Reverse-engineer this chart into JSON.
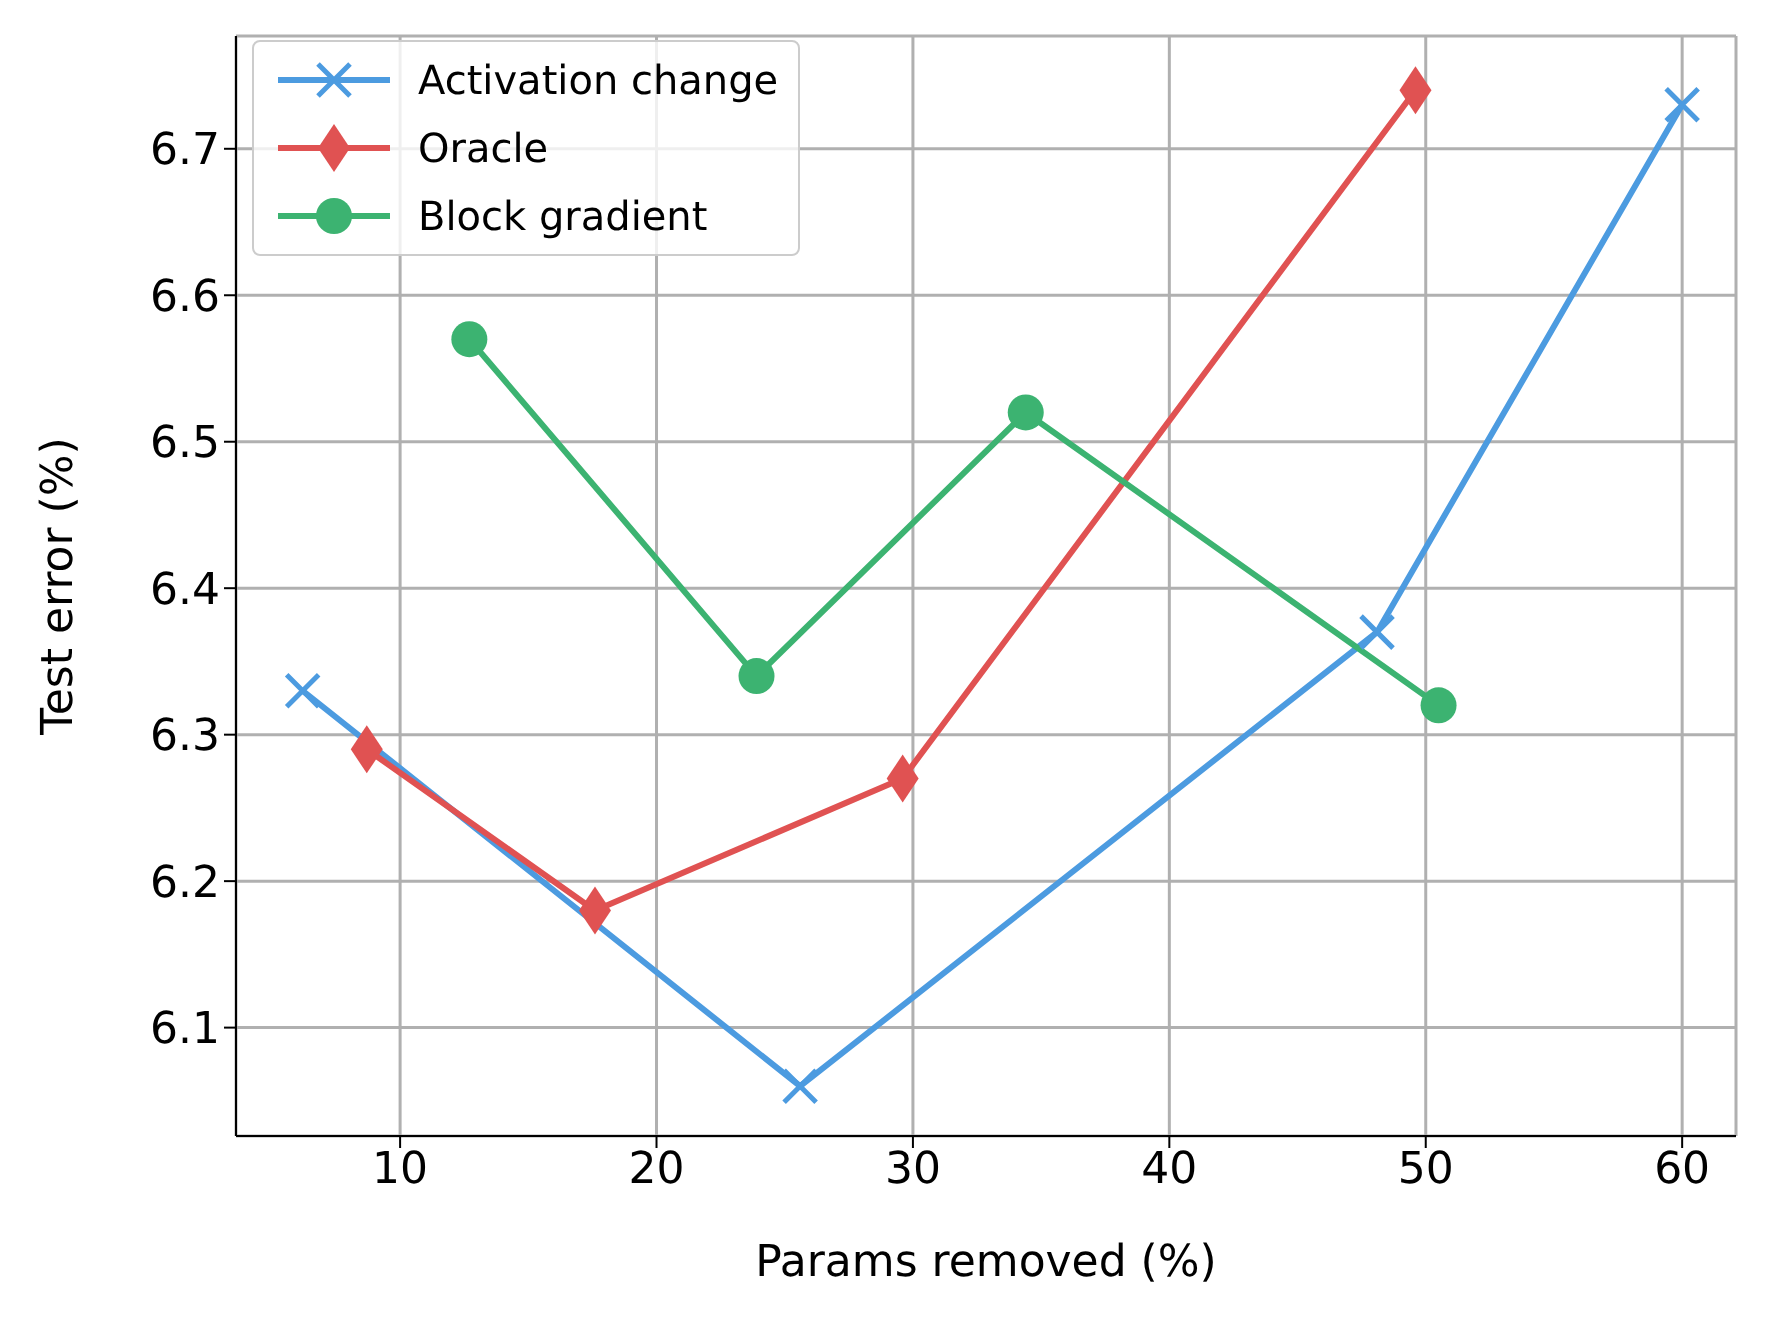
{
  "chart_data": {
    "type": "line",
    "xlabel": "Params removed (%)",
    "ylabel": "Test error (%)",
    "xlim": [
      3.6,
      62.1
    ],
    "xticks": [
      10,
      20,
      30,
      40,
      50,
      60
    ],
    "ylim": [
      6.026,
      6.777
    ],
    "yticks": [
      6.1,
      6.2,
      6.3,
      6.4,
      6.5,
      6.6,
      6.7
    ],
    "grid": true,
    "legend": "top left",
    "series": [
      {
        "name": "Activation change",
        "color": "#4c9be0",
        "marker": "cross",
        "x": [
          6.2,
          25.6,
          48.1,
          60
        ],
        "values": [
          6.33,
          6.06,
          6.37,
          6.73
        ]
      },
      {
        "name": "Oracle",
        "color": "#e05252",
        "marker": "diamond",
        "x": [
          8.7,
          17.6,
          29.6,
          49.6
        ],
        "values": [
          6.29,
          6.18,
          6.27,
          6.74
        ]
      },
      {
        "name": "Block gradient",
        "color": "#3cb371",
        "marker": "circle",
        "x": [
          12.7,
          23.9,
          34.4,
          50.5
        ],
        "values": [
          6.57,
          6.34,
          6.52,
          6.32
        ]
      }
    ]
  }
}
